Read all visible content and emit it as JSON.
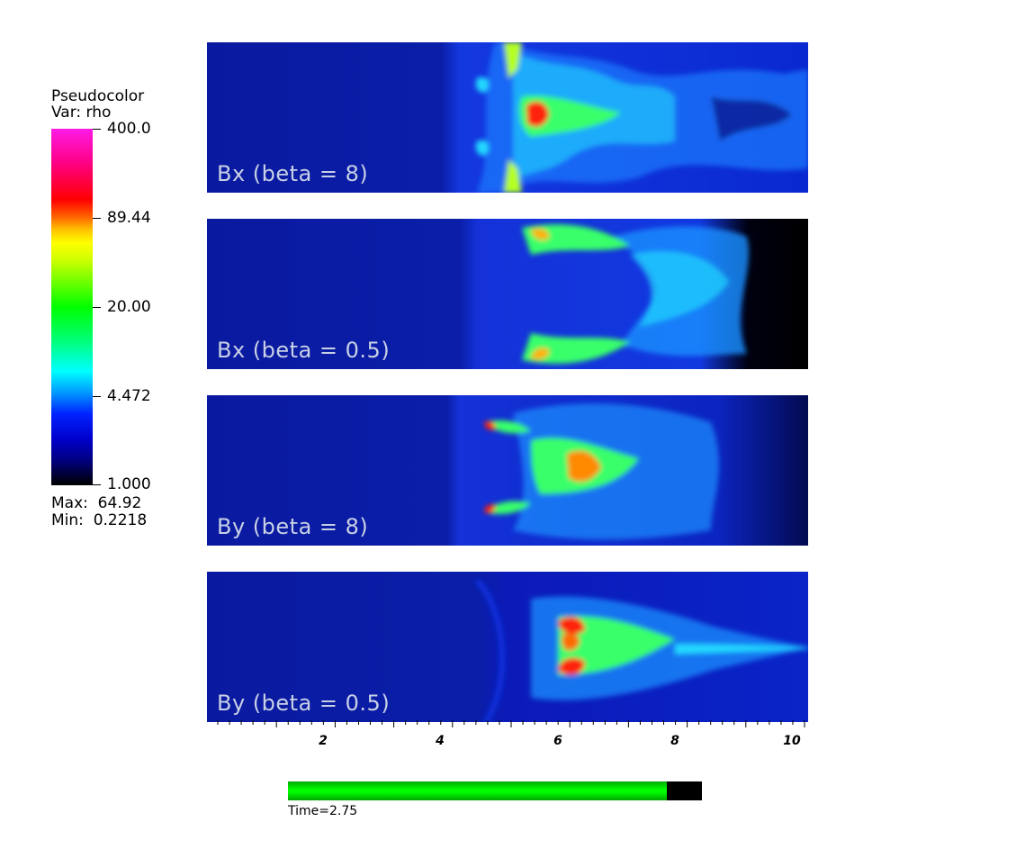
{
  "legend": {
    "title_line1": "Pseudocolor",
    "title_line2": "Var: rho",
    "ticks": [
      "400.0",
      "89.44",
      "20.00",
      "4.472",
      "1.000"
    ],
    "max_label": "Max:  64.92",
    "min_label": "Min:  0.2218"
  },
  "panels": [
    {
      "label": "Bx (beta = 8)"
    },
    {
      "label": "Bx (beta = 0.5)"
    },
    {
      "label": "By (beta = 8)"
    },
    {
      "label": "By (beta = 0.5)"
    }
  ],
  "axis": {
    "tick_labels": [
      "2",
      "4",
      "6",
      "8",
      "10"
    ]
  },
  "time": {
    "label": "Time=2.75",
    "progress": 0.915
  },
  "colors": {
    "background_flow": "#0b1fa8",
    "accent_green": "#00ff00"
  }
}
